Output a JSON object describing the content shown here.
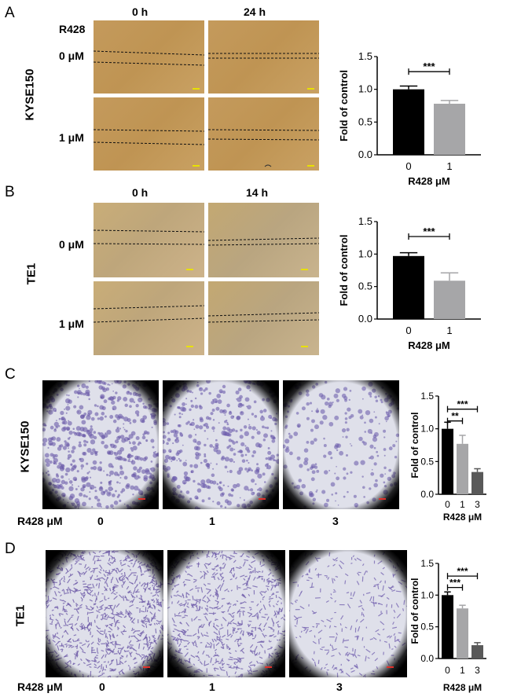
{
  "panels": {
    "A": {
      "letter": "A",
      "cell_line": "KYSE150",
      "treatment_label": "R428",
      "time_headers": [
        "0 h",
        "24 h"
      ],
      "row_labels": [
        "0 μM",
        "1 μM"
      ]
    },
    "B": {
      "letter": "B",
      "cell_line": "TE1",
      "time_headers": [
        "0 h",
        "14 h"
      ],
      "row_labels": [
        "0 μM",
        "1 μM"
      ]
    },
    "C": {
      "letter": "C",
      "cell_line": "KYSE150",
      "x_caption": "R428 μM",
      "doses": [
        "0",
        "1",
        "3"
      ]
    },
    "D": {
      "letter": "D",
      "cell_line": "TE1",
      "x_caption": "R428 μM",
      "doses": [
        "0",
        "1",
        "3"
      ]
    }
  },
  "chart_data": [
    {
      "id": "A",
      "type": "bar",
      "categories": [
        "0",
        "1"
      ],
      "values": [
        1.0,
        0.78
      ],
      "errors": [
        0.05,
        0.05
      ],
      "colors": [
        "#000000",
        "#a6a6a8"
      ],
      "xlabel": "R428 μM",
      "ylabel": "Fold of control",
      "ylim": [
        0,
        1.5
      ],
      "yticks": [
        "0.0",
        "0.5",
        "1.0",
        "1.5"
      ],
      "significance": [
        {
          "from": 0,
          "to": 1,
          "label": "***"
        }
      ]
    },
    {
      "id": "B",
      "type": "bar",
      "categories": [
        "0",
        "1"
      ],
      "values": [
        0.97,
        0.59
      ],
      "errors": [
        0.05,
        0.12
      ],
      "colors": [
        "#000000",
        "#a6a6a8"
      ],
      "xlabel": "R428 μM",
      "ylabel": "Fold of control",
      "ylim": [
        0,
        1.5
      ],
      "yticks": [
        "0.0",
        "0.5",
        "1.0",
        "1.5"
      ],
      "significance": [
        {
          "from": 0,
          "to": 1,
          "label": "***"
        }
      ]
    },
    {
      "id": "C",
      "type": "bar",
      "categories": [
        "0",
        "1",
        "3"
      ],
      "values": [
        1.0,
        0.77,
        0.34
      ],
      "errors": [
        0.1,
        0.13,
        0.05
      ],
      "colors": [
        "#000000",
        "#a6a6a8",
        "#595959"
      ],
      "xlabel": "R428 μM",
      "ylabel": "Fold of control",
      "ylim": [
        0,
        1.5
      ],
      "yticks": [
        "0.0",
        "0.5",
        "1.0",
        "1.5"
      ],
      "significance": [
        {
          "from": 0,
          "to": 1,
          "label": "**"
        },
        {
          "from": 0,
          "to": 2,
          "label": "***"
        }
      ]
    },
    {
      "id": "D",
      "type": "bar",
      "categories": [
        "0",
        "1",
        "3"
      ],
      "values": [
        1.0,
        0.79,
        0.21
      ],
      "errors": [
        0.05,
        0.05,
        0.04
      ],
      "colors": [
        "#000000",
        "#a6a6a8",
        "#595959"
      ],
      "xlabel": "R428 μM",
      "ylabel": "Fold of control",
      "ylim": [
        0,
        1.5
      ],
      "yticks": [
        "0.0",
        "0.5",
        "1.0",
        "1.5"
      ],
      "significance": [
        {
          "from": 0,
          "to": 1,
          "label": "***"
        },
        {
          "from": 0,
          "to": 2,
          "label": "***"
        }
      ]
    }
  ]
}
